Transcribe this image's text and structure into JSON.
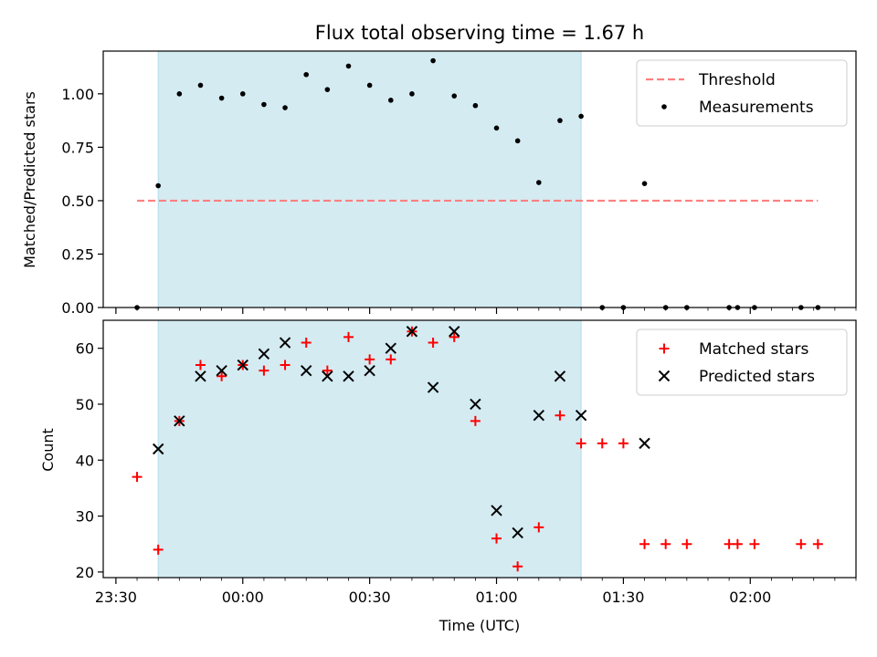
{
  "figure": {
    "title": "Flux total observing time = 1.67 h",
    "xlabel": "Time (UTC)",
    "x_tick_labels": [
      {
        "t": -30,
        "label": "23:30"
      },
      {
        "t": 0,
        "label": "00:00"
      },
      {
        "t": 30,
        "label": "00:30"
      },
      {
        "t": 60,
        "label": "01:00"
      },
      {
        "t": 90,
        "label": "01:30"
      },
      {
        "t": 120,
        "label": "02:00"
      }
    ],
    "x_minor_ticks": [
      -25,
      -20,
      -15,
      -10,
      -5,
      5,
      10,
      15,
      20,
      25,
      35,
      40,
      45,
      50,
      55,
      65,
      70,
      75,
      80,
      85,
      95,
      100,
      105,
      110,
      115,
      125,
      130,
      135,
      140,
      145
    ]
  },
  "colors": {
    "shade": "#add8e6",
    "threshold": "#ff7f7f",
    "measurement": "#000000",
    "matched": "#ff0000",
    "predicted": "#000000"
  },
  "chart_data": [
    {
      "type": "scatter",
      "title": "Flux total observing time = 1.67 h",
      "xlabel": "",
      "ylabel": "Matched/Predicted stars",
      "xlim": [
        -33,
        145
      ],
      "ylim": [
        0,
        1.2
      ],
      "y_ticks": [
        "0.00",
        "0.25",
        "0.50",
        "0.75",
        "1.00"
      ],
      "shaded_span": [
        -20,
        80
      ],
      "legend_placement": "upper right",
      "threshold": {
        "name": "Threshold",
        "y": 0.5,
        "x_range": [
          -25,
          136
        ]
      },
      "series": [
        {
          "name": "Measurements",
          "marker": "dot",
          "x": [
            -25,
            -20,
            -15,
            -10,
            -5,
            0,
            5,
            10,
            15,
            20,
            25,
            30,
            35,
            40,
            45,
            50,
            55,
            60,
            65,
            70,
            75,
            80,
            85,
            90,
            95,
            100,
            105,
            115,
            117,
            121,
            132,
            136
          ],
          "y": [
            0,
            0.57,
            1.0,
            1.04,
            0.98,
            1.0,
            0.95,
            0.935,
            1.09,
            1.02,
            1.13,
            1.04,
            0.97,
            1.0,
            1.155,
            0.99,
            0.945,
            0.84,
            0.78,
            0.585,
            0.875,
            0.895,
            0,
            0,
            0.58,
            0,
            0,
            0,
            0,
            0,
            0,
            0
          ]
        }
      ]
    },
    {
      "type": "scatter",
      "xlabel": "Time (UTC)",
      "ylabel": "Count",
      "xlim": [
        -33,
        145
      ],
      "ylim": [
        19,
        65
      ],
      "y_ticks": [
        "20",
        "30",
        "40",
        "50",
        "60"
      ],
      "shaded_span": [
        -20,
        80
      ],
      "legend_placement": "upper right",
      "series": [
        {
          "name": "Matched stars",
          "marker": "plus",
          "x": [
            -25,
            -20,
            -15,
            -10,
            -5,
            0,
            5,
            10,
            15,
            20,
            25,
            30,
            35,
            40,
            45,
            50,
            55,
            60,
            65,
            70,
            75,
            80,
            85,
            90,
            95,
            100,
            105,
            115,
            117,
            121,
            132,
            136
          ],
          "y": [
            37,
            24,
            47,
            57,
            55,
            57,
            56,
            57,
            61,
            56,
            62,
            58,
            58,
            63,
            61,
            62,
            47,
            26,
            21,
            28,
            48,
            43,
            43,
            43,
            25,
            25,
            25,
            25,
            25,
            25,
            25,
            25
          ]
        },
        {
          "name": "Predicted stars",
          "marker": "x",
          "x": [
            -20,
            -15,
            -10,
            -5,
            0,
            5,
            10,
            15,
            20,
            25,
            30,
            35,
            40,
            45,
            50,
            55,
            60,
            65,
            70,
            75,
            80,
            95
          ],
          "y": [
            42,
            47,
            55,
            56,
            57,
            59,
            61,
            56,
            55,
            55,
            56,
            60,
            63,
            53,
            63,
            50,
            31,
            27,
            48,
            55,
            48,
            43
          ]
        }
      ]
    }
  ]
}
